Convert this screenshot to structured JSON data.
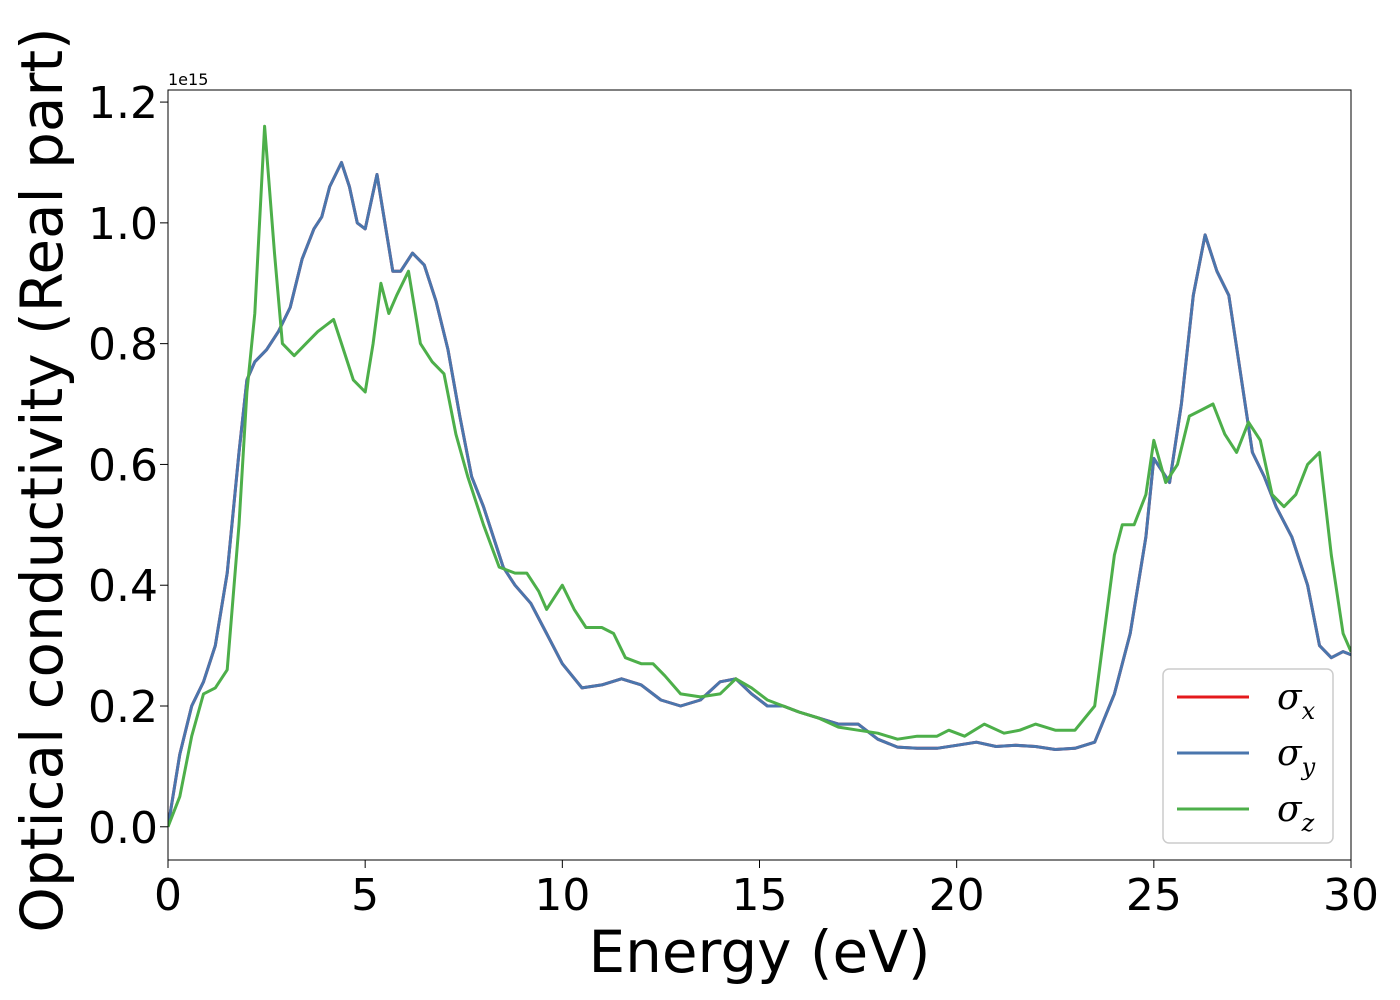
{
  "chart_data": {
    "type": "line",
    "title": "",
    "xlabel": "Energy (eV)",
    "ylabel": "Optical conductivity (Real part)",
    "y_offset_label": "1e15",
    "xlim": [
      0,
      30
    ],
    "ylim": [
      -0.055,
      1.22
    ],
    "x_ticks": [
      0,
      5,
      10,
      15,
      20,
      25,
      30
    ],
    "x_tick_labels": [
      "0",
      "5",
      "10",
      "15",
      "20",
      "25",
      "30"
    ],
    "y_ticks": [
      0.0,
      0.2,
      0.4,
      0.6,
      0.8,
      1.0,
      1.2
    ],
    "y_tick_labels": [
      "0.0",
      "0.2",
      "0.4",
      "0.6",
      "0.8",
      "1.0",
      "1.2"
    ],
    "grid": false,
    "legend_position": "lower-right",
    "series": [
      {
        "name": "σx",
        "legend_symbol": "σ",
        "legend_sub": "x",
        "color": "#e41a1c",
        "x": [
          0,
          0.3,
          0.6,
          0.9,
          1.2,
          1.5,
          1.8,
          2.0,
          2.2,
          2.5,
          2.8,
          3.1,
          3.4,
          3.7,
          3.9,
          4.1,
          4.4,
          4.6,
          4.8,
          5.0,
          5.3,
          5.5,
          5.7,
          5.9,
          6.2,
          6.5,
          6.8,
          7.1,
          7.4,
          7.7,
          8.0,
          8.5,
          8.8,
          9.2,
          9.6,
          10.0,
          10.5,
          11.0,
          11.5,
          12.0,
          12.5,
          13.0,
          13.5,
          14.0,
          14.4,
          14.8,
          15.2,
          15.6,
          16.0,
          16.5,
          17.0,
          17.5,
          18.0,
          18.5,
          19.0,
          19.5,
          20.0,
          20.5,
          21.0,
          21.5,
          22.0,
          22.5,
          23.0,
          23.5,
          24.0,
          24.4,
          24.8,
          25.0,
          25.4,
          25.7,
          26.0,
          26.3,
          26.6,
          26.9,
          27.2,
          27.5,
          27.8,
          28.1,
          28.5,
          28.9,
          29.2,
          29.5,
          29.8,
          30.0
        ],
        "y": [
          0.0,
          0.12,
          0.2,
          0.24,
          0.3,
          0.42,
          0.62,
          0.74,
          0.77,
          0.79,
          0.82,
          0.86,
          0.94,
          0.99,
          1.01,
          1.06,
          1.1,
          1.06,
          1.0,
          0.99,
          1.08,
          1.0,
          0.92,
          0.92,
          0.95,
          0.93,
          0.87,
          0.79,
          0.68,
          0.58,
          0.53,
          0.43,
          0.4,
          0.37,
          0.32,
          0.27,
          0.23,
          0.235,
          0.245,
          0.235,
          0.21,
          0.2,
          0.21,
          0.24,
          0.245,
          0.22,
          0.2,
          0.2,
          0.19,
          0.18,
          0.17,
          0.17,
          0.145,
          0.132,
          0.13,
          0.13,
          0.135,
          0.14,
          0.133,
          0.135,
          0.133,
          0.128,
          0.13,
          0.14,
          0.22,
          0.32,
          0.48,
          0.61,
          0.57,
          0.7,
          0.88,
          0.98,
          0.92,
          0.88,
          0.75,
          0.62,
          0.58,
          0.53,
          0.48,
          0.4,
          0.3,
          0.28,
          0.29,
          0.285
        ]
      },
      {
        "name": "σy",
        "legend_symbol": "σ",
        "legend_sub": "y",
        "color": "#4a76ad",
        "x": [
          0,
          0.3,
          0.6,
          0.9,
          1.2,
          1.5,
          1.8,
          2.0,
          2.2,
          2.5,
          2.8,
          3.1,
          3.4,
          3.7,
          3.9,
          4.1,
          4.4,
          4.6,
          4.8,
          5.0,
          5.3,
          5.5,
          5.7,
          5.9,
          6.2,
          6.5,
          6.8,
          7.1,
          7.4,
          7.7,
          8.0,
          8.5,
          8.8,
          9.2,
          9.6,
          10.0,
          10.5,
          11.0,
          11.5,
          12.0,
          12.5,
          13.0,
          13.5,
          14.0,
          14.4,
          14.8,
          15.2,
          15.6,
          16.0,
          16.5,
          17.0,
          17.5,
          18.0,
          18.5,
          19.0,
          19.5,
          20.0,
          20.5,
          21.0,
          21.5,
          22.0,
          22.5,
          23.0,
          23.5,
          24.0,
          24.4,
          24.8,
          25.0,
          25.4,
          25.7,
          26.0,
          26.3,
          26.6,
          26.9,
          27.2,
          27.5,
          27.8,
          28.1,
          28.5,
          28.9,
          29.2,
          29.5,
          29.8,
          30.0
        ],
        "y": [
          0.0,
          0.12,
          0.2,
          0.24,
          0.3,
          0.42,
          0.62,
          0.74,
          0.77,
          0.79,
          0.82,
          0.86,
          0.94,
          0.99,
          1.01,
          1.06,
          1.1,
          1.06,
          1.0,
          0.99,
          1.08,
          1.0,
          0.92,
          0.92,
          0.95,
          0.93,
          0.87,
          0.79,
          0.68,
          0.58,
          0.53,
          0.43,
          0.4,
          0.37,
          0.32,
          0.27,
          0.23,
          0.235,
          0.245,
          0.235,
          0.21,
          0.2,
          0.21,
          0.24,
          0.245,
          0.22,
          0.2,
          0.2,
          0.19,
          0.18,
          0.17,
          0.17,
          0.145,
          0.132,
          0.13,
          0.13,
          0.135,
          0.14,
          0.133,
          0.135,
          0.133,
          0.128,
          0.13,
          0.14,
          0.22,
          0.32,
          0.48,
          0.61,
          0.57,
          0.7,
          0.88,
          0.98,
          0.92,
          0.88,
          0.75,
          0.62,
          0.58,
          0.53,
          0.48,
          0.4,
          0.3,
          0.28,
          0.29,
          0.285
        ]
      },
      {
        "name": "σz",
        "legend_symbol": "σ",
        "legend_sub": "z",
        "color": "#4daf4a",
        "x": [
          0,
          0.3,
          0.6,
          0.9,
          1.2,
          1.5,
          1.8,
          2.0,
          2.2,
          2.45,
          2.7,
          2.9,
          3.2,
          3.5,
          3.8,
          4.0,
          4.2,
          4.4,
          4.7,
          5.0,
          5.2,
          5.4,
          5.6,
          5.8,
          6.1,
          6.4,
          6.7,
          7.0,
          7.3,
          7.6,
          8.0,
          8.4,
          8.8,
          9.1,
          9.4,
          9.6,
          9.8,
          10.0,
          10.3,
          10.6,
          11.0,
          11.3,
          11.6,
          12.0,
          12.3,
          12.6,
          13.0,
          13.5,
          14.0,
          14.4,
          14.8,
          15.2,
          15.6,
          16.0,
          16.5,
          17.0,
          17.5,
          18.0,
          18.5,
          19.0,
          19.5,
          19.8,
          20.2,
          20.7,
          21.2,
          21.6,
          22.0,
          22.5,
          23.0,
          23.5,
          23.8,
          24.0,
          24.2,
          24.5,
          24.8,
          25.0,
          25.3,
          25.6,
          25.9,
          26.2,
          26.5,
          26.8,
          27.1,
          27.4,
          27.7,
          28.0,
          28.3,
          28.6,
          28.9,
          29.2,
          29.5,
          29.8,
          30.0
        ],
        "y": [
          0.0,
          0.05,
          0.15,
          0.22,
          0.23,
          0.26,
          0.5,
          0.72,
          0.85,
          1.16,
          0.95,
          0.8,
          0.78,
          0.8,
          0.82,
          0.83,
          0.84,
          0.8,
          0.74,
          0.72,
          0.8,
          0.9,
          0.85,
          0.88,
          0.92,
          0.8,
          0.77,
          0.75,
          0.65,
          0.58,
          0.5,
          0.43,
          0.42,
          0.42,
          0.39,
          0.36,
          0.38,
          0.4,
          0.36,
          0.33,
          0.33,
          0.32,
          0.28,
          0.27,
          0.27,
          0.25,
          0.22,
          0.215,
          0.22,
          0.245,
          0.23,
          0.21,
          0.2,
          0.19,
          0.18,
          0.165,
          0.16,
          0.155,
          0.145,
          0.15,
          0.15,
          0.16,
          0.15,
          0.17,
          0.155,
          0.16,
          0.17,
          0.16,
          0.16,
          0.2,
          0.35,
          0.45,
          0.5,
          0.5,
          0.55,
          0.64,
          0.57,
          0.6,
          0.68,
          0.69,
          0.7,
          0.65,
          0.62,
          0.67,
          0.64,
          0.55,
          0.53,
          0.55,
          0.6,
          0.62,
          0.45,
          0.32,
          0.29
        ]
      }
    ]
  }
}
